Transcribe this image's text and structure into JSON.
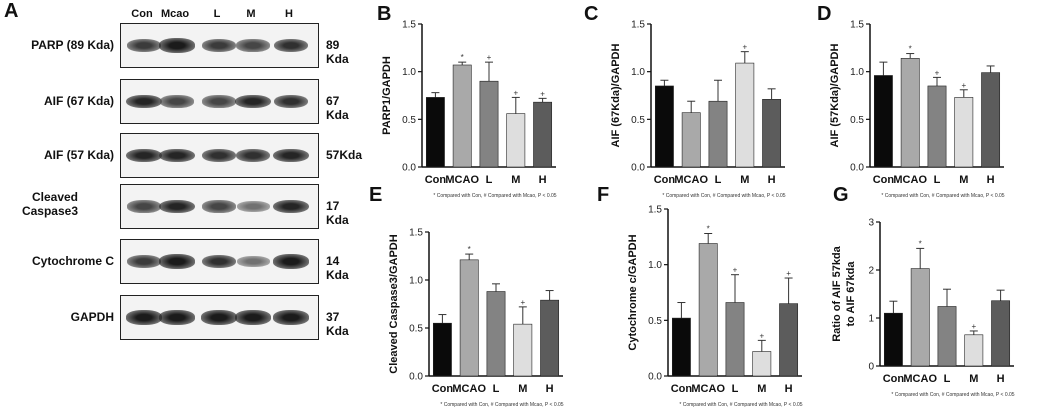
{
  "panel_letters": {
    "a": "A",
    "b": "B",
    "c": "C",
    "d": "D",
    "e": "E",
    "f": "F",
    "g": "G"
  },
  "blot": {
    "lanes": [
      "Con",
      "Mcao",
      "L",
      "M",
      "H"
    ],
    "rows": [
      {
        "label": "PARP (89 Kda)",
        "size": "89 Kda",
        "intensity": [
          0.75,
          0.9,
          0.75,
          0.7,
          0.8
        ]
      },
      {
        "label": "AIF (67 Kda)",
        "size": "67 Kda",
        "intensity": [
          0.85,
          0.7,
          0.7,
          0.85,
          0.8
        ]
      },
      {
        "label": "AIF (57 Kda)",
        "size": "57Kda",
        "intensity": [
          0.85,
          0.85,
          0.8,
          0.8,
          0.85
        ]
      },
      {
        "label": "Cleaved Caspase3",
        "size": "17 Kda",
        "intensity": [
          0.7,
          0.85,
          0.7,
          0.5,
          0.85
        ]
      },
      {
        "label": "Cytochrome  C",
        "size": "14 Kda",
        "intensity": [
          0.75,
          0.9,
          0.8,
          0.5,
          0.9
        ]
      },
      {
        "label": "GAPDH",
        "size": "37 Kda",
        "intensity": [
          0.9,
          0.9,
          0.9,
          0.9,
          0.9
        ]
      }
    ]
  },
  "colors": {
    "Con": "#0a0a0a",
    "MCAO": "#a9a9a9",
    "L": "#838383",
    "M": "#dedede",
    "H": "#5c5c5c"
  },
  "chart_data": [
    {
      "id": "B",
      "type": "bar",
      "ylabel": "PARP1/GAPDH",
      "categories": [
        "Con",
        "MCAO",
        "L",
        "M",
        "H"
      ],
      "values": [
        0.73,
        1.07,
        0.9,
        0.56,
        0.68
      ],
      "errors": [
        0.05,
        0.03,
        0.2,
        0.17,
        0.04
      ],
      "marks": [
        "",
        "*",
        "+",
        "+",
        "+"
      ],
      "ylim": [
        0.0,
        1.5
      ],
      "yticks": [
        0.0,
        0.5,
        1.0,
        1.5
      ],
      "footnote": "* Compared with Con, # Compared with Mcao, P < 0.05"
    },
    {
      "id": "C",
      "type": "bar",
      "ylabel": "AIF (67Kda)/GAPDH",
      "categories": [
        "Con",
        "MCAO",
        "L",
        "M",
        "H"
      ],
      "values": [
        0.85,
        0.57,
        0.69,
        1.09,
        0.71
      ],
      "errors": [
        0.06,
        0.12,
        0.22,
        0.12,
        0.11
      ],
      "marks": [
        "",
        "",
        "",
        "+",
        ""
      ],
      "ylim": [
        0.0,
        1.5
      ],
      "yticks": [
        0.0,
        0.5,
        1.0,
        1.5
      ],
      "footnote": "* Compared with Con, # Compared with Mcao, P < 0.05"
    },
    {
      "id": "D",
      "type": "bar",
      "ylabel": "AIF (57Kda)/GAPDH",
      "categories": [
        "Con",
        "MCAO",
        "L",
        "M",
        "H"
      ],
      "values": [
        0.96,
        1.14,
        0.85,
        0.73,
        0.99
      ],
      "errors": [
        0.14,
        0.05,
        0.09,
        0.08,
        0.07
      ],
      "marks": [
        "",
        "*",
        "+",
        "+",
        ""
      ],
      "ylim": [
        0.0,
        1.5
      ],
      "yticks": [
        0.0,
        0.5,
        1.0,
        1.5
      ],
      "footnote": "* Compared with Con, # Compared with Mcao, P < 0.05"
    },
    {
      "id": "E",
      "type": "bar",
      "ylabel": "Cleaved Caspase3/GAPDH",
      "categories": [
        "Con",
        "MCAO",
        "L",
        "M",
        "H"
      ],
      "values": [
        0.55,
        1.21,
        0.88,
        0.54,
        0.79
      ],
      "errors": [
        0.09,
        0.06,
        0.08,
        0.18,
        0.1
      ],
      "marks": [
        "",
        "*",
        "",
        "+",
        ""
      ],
      "ylim": [
        0.0,
        1.5
      ],
      "yticks": [
        0.0,
        0.5,
        1.0,
        1.5
      ],
      "footnote": "* Compared with Con, # Compared with Mcao, P < 0.05"
    },
    {
      "id": "F",
      "type": "bar",
      "ylabel": "Cytochrome c/GAPDH",
      "categories": [
        "Con",
        "MCAO",
        "L",
        "M",
        "H"
      ],
      "values": [
        0.52,
        1.19,
        0.66,
        0.22,
        0.65
      ],
      "errors": [
        0.14,
        0.09,
        0.25,
        0.1,
        0.23
      ],
      "marks": [
        "",
        "*",
        "+",
        "+",
        "+"
      ],
      "ylim": [
        0.0,
        1.5
      ],
      "yticks": [
        0.0,
        0.5,
        1.0,
        1.5
      ],
      "footnote": "* Compared with Con, # Compared with Mcao, P < 0.05"
    },
    {
      "id": "G",
      "type": "bar",
      "ylabel": "Ratio of AIF 57kda to AIF 67kda",
      "ylabel_lines": [
        "Ratio of AIF 57kda",
        "to AIF 67kda"
      ],
      "categories": [
        "Con",
        "MCAO",
        "L",
        "M",
        "H"
      ],
      "values": [
        1.1,
        2.03,
        1.24,
        0.65,
        1.36
      ],
      "errors": [
        0.25,
        0.42,
        0.36,
        0.08,
        0.22
      ],
      "marks": [
        "",
        "*",
        "",
        "+",
        ""
      ],
      "ylim": [
        0,
        3
      ],
      "yticks": [
        0,
        1,
        2,
        3
      ],
      "footnote": "* Compared with Con, # Compared with Mcao, P < 0.05"
    }
  ]
}
